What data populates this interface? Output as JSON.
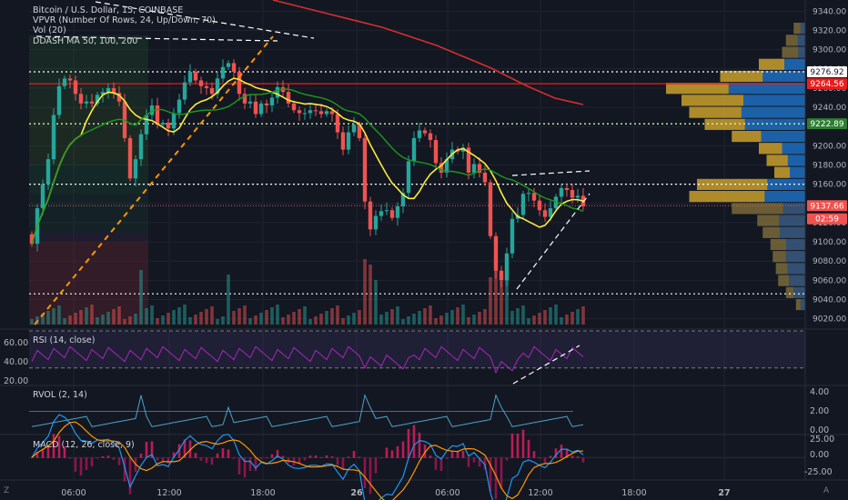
{
  "legend": {
    "symbol": "Bitcoin / U.S. Dollar, 15, COINBASE",
    "vpvr": "VPVR (Number Of Rows, 24, Up/Down, 70)",
    "vol": "Vol (20)",
    "ma": "DDASH MA 50, 100, 200"
  },
  "price_axis": {
    "ticks": [
      "9340.00",
      "9320.00",
      "9300.00",
      "9280.00",
      "9260.00",
      "9240.00",
      "9220.00",
      "9200.00",
      "9180.00",
      "9160.00",
      "9140.00",
      "9120.00",
      "9100.00",
      "9080.00",
      "9060.00",
      "9040.00",
      "9020.00"
    ],
    "range": [
      9014,
      9346
    ]
  },
  "price_tags": [
    {
      "value": "9276.92",
      "bg": "#ffffff",
      "fg": "#131722"
    },
    {
      "value": "9264.56",
      "bg": "#e91e1e",
      "fg": "#ffffff"
    },
    {
      "value": "9222.89",
      "bg": "#2e7d32",
      "fg": "#ffffff"
    },
    {
      "value": "9137.66",
      "bg": "#ef5350",
      "fg": "#ffffff"
    },
    {
      "value": "02:59",
      "bg": "#ef5350",
      "fg": "#ffffff"
    }
  ],
  "time_axis": [
    "06:00",
    "12:00",
    "18:00",
    "26",
    "06:00",
    "12:00",
    "18:00",
    "27"
  ],
  "rsi": {
    "label": "RSI (14, close)",
    "ticks": [
      "60.00",
      "40.00",
      "20.00"
    ]
  },
  "rvol": {
    "label": "RVOL (2, 14)",
    "ticks": [
      "4.00",
      "2.00",
      "0.00"
    ]
  },
  "macd": {
    "label": "MACD (12, 26, close, 9)",
    "ticks": [
      "25.00",
      "0.00",
      "-25.00"
    ]
  },
  "chart_data": {
    "type": "candlestick",
    "series": [
      {
        "name": "price_close",
        "values": [
          9098,
          9135,
          9160,
          9186,
          9232,
          9262,
          9270,
          9268,
          9254,
          9244,
          9246,
          9244,
          9253,
          9256,
          9260,
          9255,
          9246,
          9208,
          9166,
          9186,
          9212,
          9232,
          9242,
          9222,
          9224,
          9218,
          9234,
          9248,
          9266,
          9277,
          9268,
          9262,
          9260,
          9254,
          9270,
          9282,
          9286,
          9277,
          9254,
          9244,
          9246,
          9233,
          9244,
          9242,
          9250,
          9261,
          9256,
          9244,
          9237,
          9234,
          9234,
          9237,
          9236,
          9233,
          9236,
          9233,
          9214,
          9196,
          9214,
          9222,
          9208,
          9142,
          9113,
          9127,
          9132,
          9133,
          9125,
          9137,
          9151,
          9184,
          9208,
          9216,
          9213,
          9206,
          9182,
          9172,
          9186,
          9196,
          9194,
          9198,
          9172,
          9181,
          9172,
          9162,
          9106,
          9070,
          9060,
          9088,
          9124,
          9128,
          9150,
          9151,
          9143,
          9133,
          9126,
          9135,
          9147,
          9156,
          9154,
          9146,
          9148,
          9137
        ]
      }
    ],
    "moving_averages": [
      {
        "name": "MA 50",
        "color": "#ffeb3b"
      },
      {
        "name": "MA 100",
        "color": "#1b9a1b"
      },
      {
        "name": "MA 200",
        "color": "#d32f2f"
      }
    ],
    "horizontal_levels": [
      9276.92,
      9264.56,
      9222.89,
      9160,
      9046
    ],
    "volume_profile_rows": 24
  }
}
